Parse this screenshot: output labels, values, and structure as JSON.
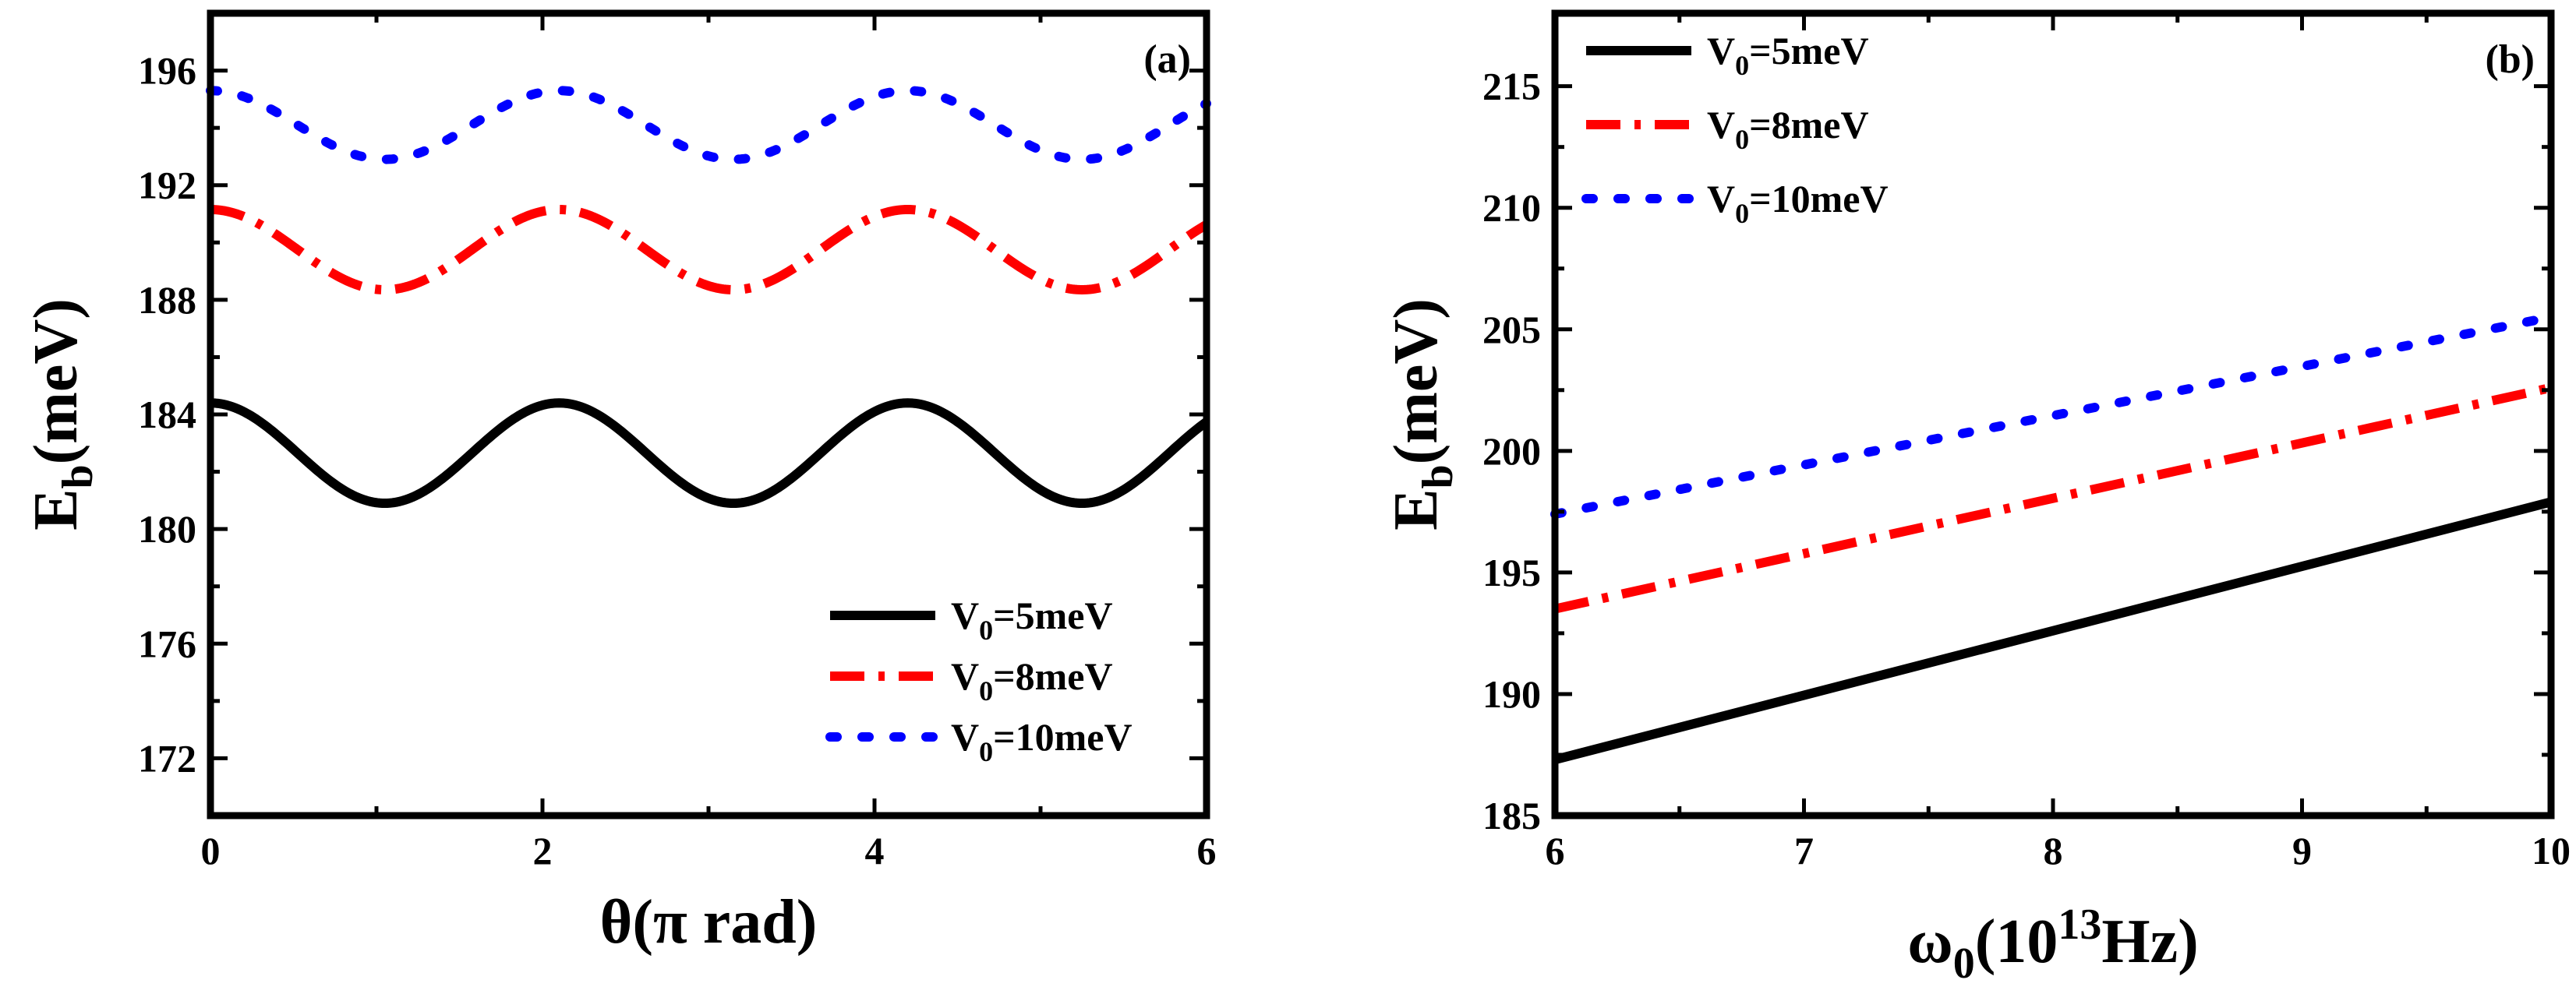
{
  "chart_data": [
    {
      "type": "line",
      "panel_label": "(a)",
      "xlabel": "θ(π rad)",
      "ylabel": "E",
      "ylabel_sub": "b",
      "ylabel_unit": "(meV)",
      "xlim": [
        0,
        6
      ],
      "ylim": [
        170,
        198
      ],
      "xticks": [
        0,
        2,
        4,
        6
      ],
      "yticks": [
        172,
        176,
        180,
        184,
        188,
        192,
        196
      ],
      "legend_position": "bottom-right",
      "series": [
        {
          "name": "V0=5meV",
          "legend": {
            "main": "V",
            "sub": "0",
            "rest": "=5meV"
          },
          "color": "#000000",
          "style": "solid",
          "mean": 182.65,
          "amplitude": 1.75,
          "period": 2.1,
          "phase": 0
        },
        {
          "name": "V0=8meV",
          "legend": {
            "main": "V",
            "sub": "0",
            "rest": "=8meV"
          },
          "color": "#ff0000",
          "style": "dashdot",
          "mean": 189.75,
          "amplitude": 1.4,
          "period": 2.1,
          "phase": 0
        },
        {
          "name": "V0=10meV",
          "legend": {
            "main": "V",
            "sub": "0",
            "rest": "=10meV"
          },
          "color": "#0000ff",
          "style": "dot",
          "mean": 194.1,
          "amplitude": 1.2,
          "period": 2.1,
          "phase": 0
        }
      ]
    },
    {
      "type": "line",
      "panel_label": "(b)",
      "xlabel": "ω",
      "xlabel_sub": "0",
      "xlabel_unit_pre": "(10",
      "xlabel_sup": "13",
      "xlabel_unit_post": "Hz)",
      "ylabel": "E",
      "ylabel_sub": "b",
      "ylabel_unit": "(meV)",
      "xlim": [
        6,
        10
      ],
      "ylim": [
        185,
        218
      ],
      "xticks": [
        6,
        7,
        8,
        9,
        10
      ],
      "yticks": [
        185,
        190,
        195,
        200,
        205,
        210,
        215
      ],
      "legend_position": "top-left",
      "series": [
        {
          "name": "V0=5meV",
          "legend": {
            "main": "V",
            "sub": "0",
            "rest": "=5meV"
          },
          "color": "#000000",
          "style": "solid",
          "x": [
            6,
            10
          ],
          "y": [
            187.3,
            197.9
          ]
        },
        {
          "name": "V0=8meV",
          "legend": {
            "main": "V",
            "sub": "0",
            "rest": "=8meV"
          },
          "color": "#ff0000",
          "style": "dashdot",
          "x": [
            6,
            10
          ],
          "y": [
            193.5,
            202.6
          ]
        },
        {
          "name": "V0=10meV",
          "legend": {
            "main": "V",
            "sub": "0",
            "rest": "=10meV"
          },
          "color": "#0000ff",
          "style": "dot",
          "x": [
            6,
            10
          ],
          "y": [
            197.4,
            205.5
          ]
        }
      ]
    }
  ]
}
